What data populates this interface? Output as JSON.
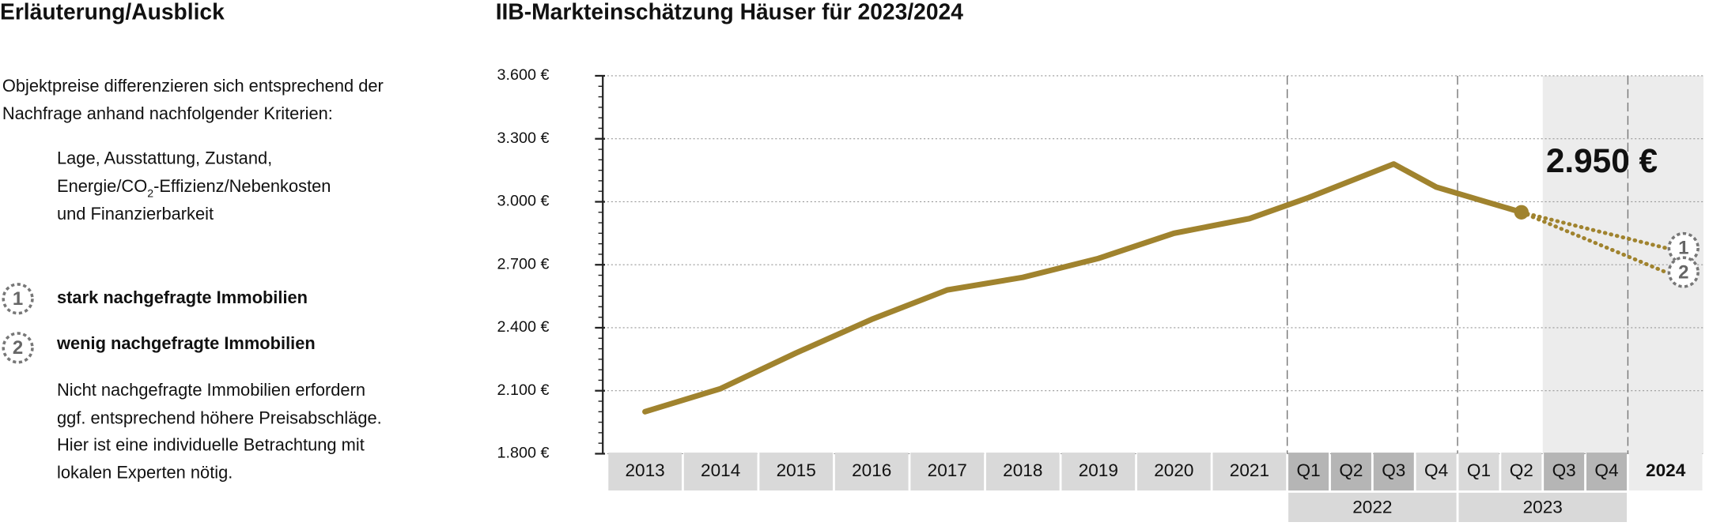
{
  "panel": {
    "heading": "Erläuterung/Ausblick",
    "intro": [
      "Objektpreise differenzieren sich entsprechend der",
      "Nachfrage anhand nachfolgender Kriterien:"
    ],
    "criteria_1": "Lage, Ausstattung, Zustand,",
    "criteria_2": {
      "before": "Energie/CO",
      "sub": "2",
      "after": "-Effizienz/Nebenkosten"
    },
    "criteria_3": "und Finanzierbarkeit",
    "note": [
      "Nicht nachgefragte Immobilien erfordern",
      "ggf. entsprechend höhere Preisabschläge.",
      "Hier ist eine individuelle Betrachtung mit",
      "lokalen Experten nötig."
    ]
  },
  "chart_data": {
    "type": "line",
    "title": "IIB-Markteinschätzung Häuser für 2023/2024",
    "categories": [
      "2013",
      "2014",
      "2015",
      "2016",
      "2017",
      "2018",
      "2019",
      "2020",
      "2021",
      "Q1",
      "Q2",
      "Q3",
      "Q4",
      "Q1",
      "Q2",
      "Q3",
      "Q4",
      "2024"
    ],
    "category_colors": [
      "#d9d9d9",
      "#d9d9d9",
      "#d9d9d9",
      "#d9d9d9",
      "#d9d9d9",
      "#d9d9d9",
      "#d9d9d9",
      "#d9d9d9",
      "#d9d9d9",
      "#b5b5b5",
      "#b5b5b5",
      "#b5b5b5",
      "#d9d9d9",
      "#d9d9d9",
      "#d9d9d9",
      "#b5b5b5",
      "#b5b5b5",
      "#ececec"
    ],
    "groups": [
      {
        "label": "2022",
        "from": 9,
        "to": 12
      },
      {
        "label": "2023",
        "from": 13,
        "to": 16
      }
    ],
    "shade_from": 15,
    "series": [
      {
        "color": "#a0832e",
        "style": "solid",
        "values": [
          2000,
          2110,
          2280,
          2440,
          2580,
          2640,
          2730,
          2850,
          2920,
          3020,
          3100,
          3180,
          3070,
          3010,
          2950,
          null,
          null,
          null
        ],
        "value_labels": [
          null,
          null,
          null,
          null,
          null,
          null,
          null,
          null,
          null,
          null,
          null,
          null,
          null,
          null,
          "2.950 €",
          null,
          null,
          null
        ]
      },
      {
        "name": "stark nachgefragte Immobilien",
        "marker": "1",
        "color": "#a0832e",
        "style": "dotted",
        "values": [
          null,
          null,
          null,
          null,
          null,
          null,
          null,
          null,
          null,
          null,
          null,
          null,
          null,
          null,
          2950,
          null,
          null,
          2780
        ]
      },
      {
        "name": "wenig nachgefragte Immobilien",
        "marker": "2",
        "color": "#a0832e",
        "style": "dotted",
        "values": [
          null,
          null,
          null,
          null,
          null,
          null,
          null,
          null,
          null,
          null,
          null,
          null,
          null,
          null,
          2950,
          null,
          null,
          2665
        ]
      }
    ],
    "ylim": [
      1800,
      3600
    ],
    "yticks": [
      {
        "value": 1800,
        "label": "1.800 €"
      },
      {
        "value": 2100,
        "label": "2.100 €"
      },
      {
        "value": 2400,
        "label": "2.400 €"
      },
      {
        "value": 2700,
        "label": "2.700 €"
      },
      {
        "value": 3000,
        "label": "3.000 €"
      },
      {
        "value": 3300,
        "label": "3.300 €"
      },
      {
        "value": 3600,
        "label": "3.600 €"
      }
    ],
    "grid": true
  }
}
